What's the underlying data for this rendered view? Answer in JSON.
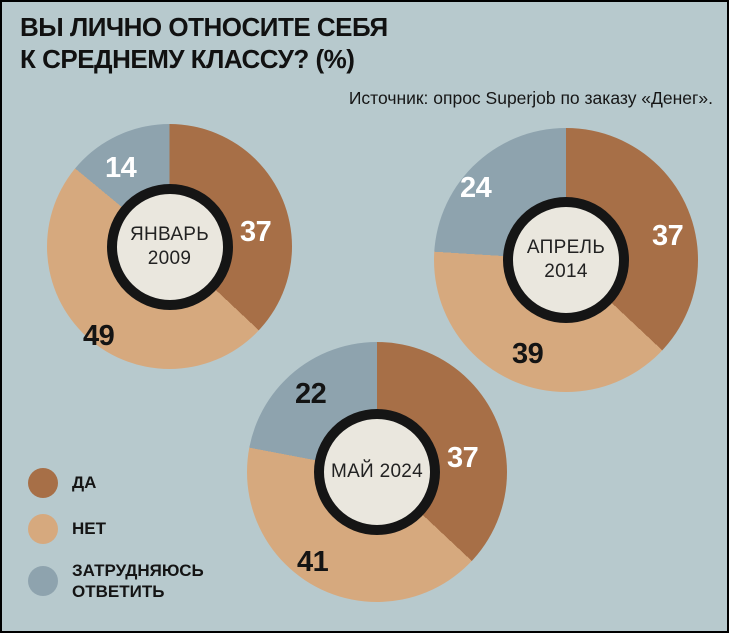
{
  "title": {
    "line1": "ВЫ ЛИЧНО ОТНОСИТЕ СЕБЯ",
    "line2": "К СРЕДНЕМУ КЛАССУ? (%)"
  },
  "source": "Источник: опрос Superjob по заказу «Денег».",
  "colors": {
    "background": "#b7c9cd",
    "yes": "#a76f47",
    "no": "#d6a97e",
    "undecided": "#8ea3ae",
    "hole_fill": "#eae7de",
    "ring": "#151515",
    "text": "#141414",
    "value_on_dark_slice": "#ffffff"
  },
  "legend": {
    "items": [
      {
        "label": "ДА",
        "key": "yes"
      },
      {
        "label": "НЕТ",
        "key": "no"
      },
      {
        "label": "ЗАТРУДНЯЮСЬ ОТВЕТИТЬ",
        "key": "undecided"
      }
    ]
  },
  "chart_data": {
    "type": "pie",
    "subtype": "donut",
    "title": "ВЫ ЛИЧНО ОТНОСИТЕ СЕБЯ К СРЕДНЕМУ КЛАССУ? (%)",
    "source": "Источник: опрос Superjob по заказу «Денег».",
    "unit": "%",
    "series_names": [
      "ДА",
      "НЕТ",
      "ЗАТРУДНЯЮСЬ ОТВЕТИТЬ"
    ],
    "start_angle_deg": 0,
    "direction": "clockwise",
    "legend_position": "bottom-left",
    "charts": [
      {
        "label": "ЯНВАРЬ 2009",
        "label_line1": "ЯНВАРЬ",
        "label_line2": "2009",
        "yes": 37,
        "no": 49,
        "undecided": 14
      },
      {
        "label": "АПРЕЛЬ 2014",
        "label_line1": "АПРЕЛЬ",
        "label_line2": "2014",
        "yes": 37,
        "no": 39,
        "undecided": 24
      },
      {
        "label": "МАЙ 2024",
        "label_line1": "МАЙ 2024",
        "label_line2": "",
        "yes": 37,
        "no": 41,
        "undecided": 22
      }
    ]
  }
}
